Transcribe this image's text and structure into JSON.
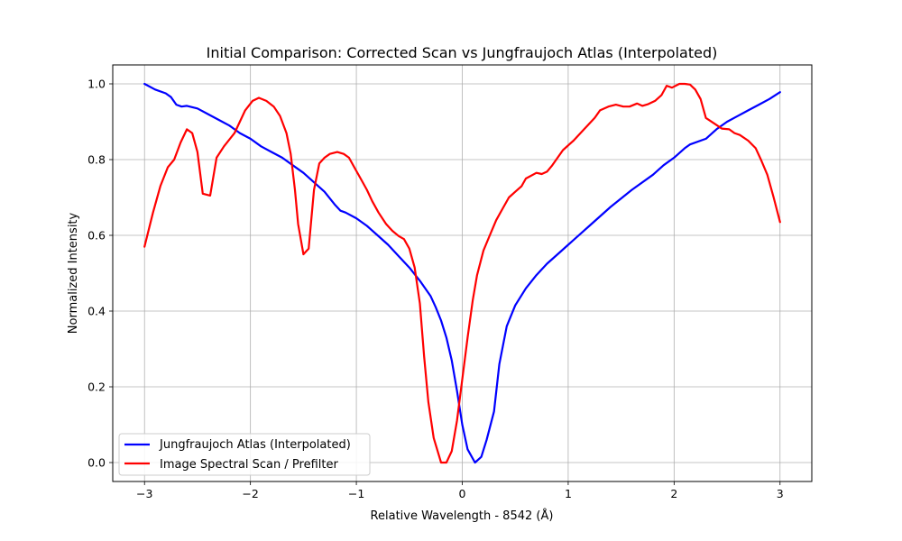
{
  "chart_data": {
    "type": "line",
    "title": "Initial Comparison: Corrected Scan vs Jungfraujoch Atlas (Interpolated)",
    "xlabel": "Relative Wavelength - 8542 (Å)",
    "ylabel": "Normalized Intensity",
    "xlim": [
      -3.3,
      3.3
    ],
    "ylim": [
      -0.05,
      1.05
    ],
    "xticks": [
      -3,
      -2,
      -1,
      0,
      1,
      2,
      3
    ],
    "xtick_labels": [
      "−3",
      "−2",
      "−1",
      "0",
      "1",
      "2",
      "3"
    ],
    "yticks": [
      0.0,
      0.2,
      0.4,
      0.6,
      0.8,
      1.0
    ],
    "ytick_labels": [
      "0.0",
      "0.2",
      "0.4",
      "0.6",
      "0.8",
      "1.0"
    ],
    "grid": true,
    "legend_position": "lower-left",
    "series": [
      {
        "name": "Jungfraujoch Atlas (Interpolated)",
        "color": "#0000ff",
        "points": [
          [
            -3.0,
            1.0
          ],
          [
            -2.9,
            0.985
          ],
          [
            -2.8,
            0.975
          ],
          [
            -2.75,
            0.965
          ],
          [
            -2.7,
            0.945
          ],
          [
            -2.65,
            0.94
          ],
          [
            -2.6,
            0.942
          ],
          [
            -2.5,
            0.935
          ],
          [
            -2.4,
            0.92
          ],
          [
            -2.3,
            0.905
          ],
          [
            -2.2,
            0.89
          ],
          [
            -2.1,
            0.87
          ],
          [
            -2.0,
            0.855
          ],
          [
            -1.9,
            0.835
          ],
          [
            -1.8,
            0.82
          ],
          [
            -1.7,
            0.805
          ],
          [
            -1.6,
            0.785
          ],
          [
            -1.5,
            0.765
          ],
          [
            -1.4,
            0.74
          ],
          [
            -1.3,
            0.715
          ],
          [
            -1.2,
            0.68
          ],
          [
            -1.15,
            0.665
          ],
          [
            -1.1,
            0.66
          ],
          [
            -1.0,
            0.645
          ],
          [
            -0.9,
            0.625
          ],
          [
            -0.8,
            0.6
          ],
          [
            -0.7,
            0.575
          ],
          [
            -0.6,
            0.545
          ],
          [
            -0.5,
            0.515
          ],
          [
            -0.4,
            0.48
          ],
          [
            -0.3,
            0.44
          ],
          [
            -0.25,
            0.41
          ],
          [
            -0.2,
            0.375
          ],
          [
            -0.15,
            0.33
          ],
          [
            -0.1,
            0.27
          ],
          [
            -0.05,
            0.19
          ],
          [
            0.0,
            0.1
          ],
          [
            0.05,
            0.035
          ],
          [
            0.12,
            0.0
          ],
          [
            0.18,
            0.015
          ],
          [
            0.23,
            0.06
          ],
          [
            0.3,
            0.135
          ],
          [
            0.35,
            0.26
          ],
          [
            0.42,
            0.36
          ],
          [
            0.5,
            0.415
          ],
          [
            0.6,
            0.46
          ],
          [
            0.7,
            0.495
          ],
          [
            0.8,
            0.525
          ],
          [
            0.9,
            0.55
          ],
          [
            1.0,
            0.575
          ],
          [
            1.2,
            0.625
          ],
          [
            1.4,
            0.675
          ],
          [
            1.6,
            0.72
          ],
          [
            1.8,
            0.76
          ],
          [
            1.9,
            0.785
          ],
          [
            2.0,
            0.805
          ],
          [
            2.1,
            0.83
          ],
          [
            2.15,
            0.84
          ],
          [
            2.3,
            0.855
          ],
          [
            2.4,
            0.88
          ],
          [
            2.5,
            0.9
          ],
          [
            2.6,
            0.915
          ],
          [
            2.7,
            0.93
          ],
          [
            2.8,
            0.945
          ],
          [
            2.9,
            0.96
          ],
          [
            3.0,
            0.978
          ]
        ]
      },
      {
        "name": "Image Spectral Scan / Prefilter",
        "color": "#ff0000",
        "points": [
          [
            -3.0,
            0.57
          ],
          [
            -2.92,
            0.66
          ],
          [
            -2.85,
            0.73
          ],
          [
            -2.78,
            0.78
          ],
          [
            -2.72,
            0.8
          ],
          [
            -2.66,
            0.845
          ],
          [
            -2.6,
            0.88
          ],
          [
            -2.55,
            0.87
          ],
          [
            -2.5,
            0.82
          ],
          [
            -2.45,
            0.71
          ],
          [
            -2.38,
            0.705
          ],
          [
            -2.32,
            0.805
          ],
          [
            -2.25,
            0.835
          ],
          [
            -2.15,
            0.87
          ],
          [
            -2.1,
            0.9
          ],
          [
            -2.05,
            0.93
          ],
          [
            -1.98,
            0.955
          ],
          [
            -1.92,
            0.963
          ],
          [
            -1.85,
            0.955
          ],
          [
            -1.78,
            0.94
          ],
          [
            -1.72,
            0.915
          ],
          [
            -1.66,
            0.87
          ],
          [
            -1.62,
            0.815
          ],
          [
            -1.58,
            0.72
          ],
          [
            -1.55,
            0.63
          ],
          [
            -1.5,
            0.55
          ],
          [
            -1.45,
            0.565
          ],
          [
            -1.4,
            0.72
          ],
          [
            -1.35,
            0.79
          ],
          [
            -1.3,
            0.805
          ],
          [
            -1.25,
            0.815
          ],
          [
            -1.18,
            0.82
          ],
          [
            -1.12,
            0.815
          ],
          [
            -1.07,
            0.805
          ],
          [
            -1.02,
            0.78
          ],
          [
            -0.96,
            0.75
          ],
          [
            -0.9,
            0.72
          ],
          [
            -0.85,
            0.69
          ],
          [
            -0.79,
            0.66
          ],
          [
            -0.72,
            0.63
          ],
          [
            -0.66,
            0.612
          ],
          [
            -0.6,
            0.598
          ],
          [
            -0.55,
            0.59
          ],
          [
            -0.5,
            0.565
          ],
          [
            -0.45,
            0.515
          ],
          [
            -0.4,
            0.42
          ],
          [
            -0.36,
            0.28
          ],
          [
            -0.32,
            0.16
          ],
          [
            -0.27,
            0.065
          ],
          [
            -0.2,
            0.0
          ],
          [
            -0.15,
            0.0
          ],
          [
            -0.1,
            0.03
          ],
          [
            -0.05,
            0.11
          ],
          [
            0.0,
            0.22
          ],
          [
            0.05,
            0.33
          ],
          [
            0.1,
            0.43
          ],
          [
            0.14,
            0.495
          ],
          [
            0.2,
            0.56
          ],
          [
            0.26,
            0.6
          ],
          [
            0.32,
            0.64
          ],
          [
            0.38,
            0.67
          ],
          [
            0.44,
            0.7
          ],
          [
            0.5,
            0.715
          ],
          [
            0.56,
            0.73
          ],
          [
            0.6,
            0.75
          ],
          [
            0.7,
            0.765
          ],
          [
            0.75,
            0.762
          ],
          [
            0.8,
            0.768
          ],
          [
            0.85,
            0.785
          ],
          [
            0.9,
            0.805
          ],
          [
            0.95,
            0.825
          ],
          [
            1.05,
            0.85
          ],
          [
            1.15,
            0.88
          ],
          [
            1.25,
            0.91
          ],
          [
            1.3,
            0.93
          ],
          [
            1.38,
            0.94
          ],
          [
            1.45,
            0.945
          ],
          [
            1.52,
            0.94
          ],
          [
            1.58,
            0.94
          ],
          [
            1.65,
            0.948
          ],
          [
            1.7,
            0.942
          ],
          [
            1.75,
            0.946
          ],
          [
            1.82,
            0.955
          ],
          [
            1.88,
            0.97
          ],
          [
            1.93,
            0.995
          ],
          [
            1.98,
            0.99
          ],
          [
            2.05,
            1.0
          ],
          [
            2.1,
            1.0
          ],
          [
            2.15,
            0.998
          ],
          [
            2.2,
            0.985
          ],
          [
            2.25,
            0.96
          ],
          [
            2.3,
            0.91
          ],
          [
            2.38,
            0.895
          ],
          [
            2.45,
            0.882
          ],
          [
            2.52,
            0.88
          ],
          [
            2.57,
            0.87
          ],
          [
            2.62,
            0.865
          ],
          [
            2.7,
            0.85
          ],
          [
            2.77,
            0.83
          ],
          [
            2.82,
            0.8
          ],
          [
            2.88,
            0.76
          ],
          [
            2.94,
            0.7
          ],
          [
            3.0,
            0.635
          ]
        ]
      }
    ]
  }
}
